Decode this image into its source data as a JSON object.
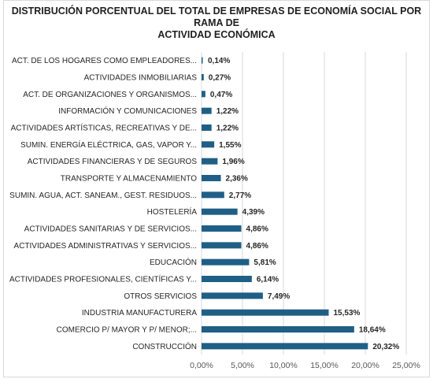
{
  "chart_data": {
    "type": "bar",
    "orientation": "horizontal",
    "title_lines": [
      "DISTRIBUCIÓN PORCENTUAL DEL TOTAL DE EMPRESAS DE ECONOMÍA SOCIAL POR RAMA DE",
      "ACTIVIDAD ECONÓMICA"
    ],
    "categories": [
      "ACT. DE LOS HOGARES COMO EMPLEADORES...",
      "ACTIVIDADES INMOBILIARIAS",
      "ACT. DE ORGANIZACIONES Y ORGANISMOS...",
      "INFORMACIÓN Y COMUNICACIONES",
      "ACTIVIDADES ARTÍSTICAS, RECREATIVAS Y DE...",
      "SUMIN. ENERGÍA ELÉCTRICA, GAS, VAPOR Y...",
      "ACTIVIDADES FINANCIERAS Y DE SEGUROS",
      "TRANSPORTE Y ALMACENAMIENTO",
      "SUMIN. AGUA, ACT. SANEAM., GEST. RESIDUOS...",
      "HOSTELERÍA",
      "ACTIVIDADES SANITARIAS Y DE SERVICIOS...",
      "ACTIVIDADES ADMINISTRATIVAS Y SERVICIOS...",
      "EDUCACIÓN",
      "ACTIVIDADES PROFESIONALES, CIENTÍFICAS Y...",
      "OTROS SERVICIOS",
      "INDUSTRIA MANUFACTURERA",
      "COMERCIO P/ MAYOR Y P/ MENOR;...",
      "CONSTRUCCIÓN"
    ],
    "values": [
      0.14,
      0.27,
      0.47,
      1.22,
      1.22,
      1.55,
      1.96,
      2.36,
      2.77,
      4.39,
      4.86,
      4.86,
      5.81,
      6.14,
      7.49,
      15.53,
      18.64,
      20.32
    ],
    "value_labels": [
      "0,14%",
      "0,27%",
      "0,47%",
      "1,22%",
      "1,22%",
      "1,55%",
      "1,96%",
      "2,36%",
      "2,77%",
      "4,39%",
      "4,86%",
      "4,86%",
      "5,81%",
      "6,14%",
      "7,49%",
      "15,53%",
      "18,64%",
      "20,32%"
    ],
    "xlim": [
      0,
      25
    ],
    "xticks": [
      0,
      5,
      10,
      15,
      20,
      25
    ],
    "xtick_labels": [
      "0,00%",
      "5,00%",
      "10,00%",
      "15,00%",
      "20,00%",
      "25,00%"
    ],
    "grid": "vertical",
    "legend": "none",
    "bar_color": "#1f5f86"
  }
}
